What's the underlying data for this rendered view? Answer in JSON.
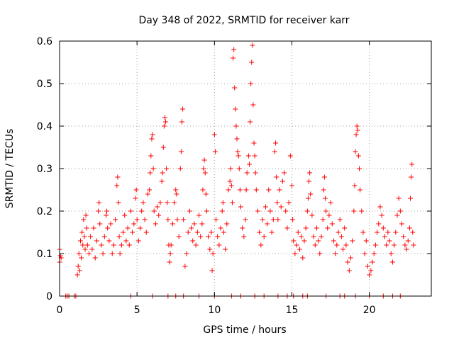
{
  "chart_data": {
    "type": "scatter",
    "title": "Day 348 of 2022, SRMTID for receiver karr",
    "xlabel": "GPS time / hours",
    "ylabel": "SRMTID / TECUs",
    "xlim": [
      0,
      24
    ],
    "ylim": [
      0,
      0.6
    ],
    "x_ticks": [
      0,
      5,
      10,
      15,
      20
    ],
    "y_ticks": [
      0,
      0.1,
      0.2,
      0.3,
      0.4,
      0.5,
      0.6
    ],
    "x_tick_labels": [
      "0",
      "5",
      "10",
      "15",
      "20"
    ],
    "y_tick_labels": [
      "0",
      "0.1",
      "0.2",
      "0.3",
      "0.4",
      "0.5",
      "0.6"
    ],
    "grid": true,
    "marker": "+",
    "colors": {
      "series": "#ff0000",
      "grid": "#a0a0a0",
      "axis": "#000000"
    },
    "series": [
      {
        "name": "SRMTID",
        "points": [
          [
            0.0,
            0.08
          ],
          [
            0.0,
            0.11
          ],
          [
            0.05,
            0.095
          ],
          [
            0.1,
            0.09
          ],
          [
            0.4,
            0.0
          ],
          [
            0.5,
            0.0
          ],
          [
            0.6,
            0.0
          ],
          [
            0.95,
            0.0
          ],
          [
            1.05,
            0.0
          ],
          [
            1.15,
            0.05
          ],
          [
            1.2,
            0.07
          ],
          [
            1.25,
            0.1
          ],
          [
            1.3,
            0.06
          ],
          [
            1.35,
            0.13
          ],
          [
            1.4,
            0.09
          ],
          [
            1.45,
            0.15
          ],
          [
            1.5,
            0.12
          ],
          [
            1.55,
            0.18
          ],
          [
            1.6,
            0.14
          ],
          [
            1.65,
            0.11
          ],
          [
            1.7,
            0.19
          ],
          [
            1.75,
            0.16
          ],
          [
            1.8,
            0.12
          ],
          [
            1.9,
            0.1
          ],
          [
            2.0,
            0.14
          ],
          [
            2.1,
            0.11
          ],
          [
            2.2,
            0.16
          ],
          [
            2.3,
            0.09
          ],
          [
            2.4,
            0.13
          ],
          [
            2.5,
            0.2
          ],
          [
            2.55,
            0.22
          ],
          [
            2.6,
            0.17
          ],
          [
            2.7,
            0.12
          ],
          [
            2.8,
            0.1
          ],
          [
            2.9,
            0.14
          ],
          [
            3.0,
            0.19
          ],
          [
            3.05,
            0.2
          ],
          [
            3.1,
            0.16
          ],
          [
            3.2,
            0.13
          ],
          [
            3.3,
            0.17
          ],
          [
            3.4,
            0.1
          ],
          [
            3.5,
            0.12
          ],
          [
            3.6,
            0.18
          ],
          [
            3.7,
            0.26
          ],
          [
            3.75,
            0.28
          ],
          [
            3.8,
            0.22
          ],
          [
            3.85,
            0.14
          ],
          [
            3.9,
            0.1
          ],
          [
            4.0,
            0.12
          ],
          [
            4.1,
            0.15
          ],
          [
            4.2,
            0.19
          ],
          [
            4.3,
            0.13
          ],
          [
            4.4,
            0.16
          ],
          [
            4.5,
            0.12
          ],
          [
            4.6,
            0.2
          ],
          [
            4.7,
            0.15
          ],
          [
            4.8,
            0.17
          ],
          [
            4.9,
            0.23
          ],
          [
            4.95,
            0.25
          ],
          [
            5.0,
            0.18
          ],
          [
            5.1,
            0.13
          ],
          [
            5.2,
            0.16
          ],
          [
            5.3,
            0.2
          ],
          [
            5.4,
            0.22
          ],
          [
            5.5,
            0.18
          ],
          [
            5.6,
            0.15
          ],
          [
            5.7,
            0.24
          ],
          [
            5.8,
            0.25
          ],
          [
            5.85,
            0.29
          ],
          [
            5.9,
            0.33
          ],
          [
            5.95,
            0.37
          ],
          [
            6.0,
            0.38
          ],
          [
            6.05,
            0.3
          ],
          [
            6.1,
            0.2
          ],
          [
            6.2,
            0.17
          ],
          [
            6.3,
            0.21
          ],
          [
            6.4,
            0.19
          ],
          [
            6.5,
            0.22
          ],
          [
            6.6,
            0.27
          ],
          [
            6.65,
            0.29
          ],
          [
            6.7,
            0.35
          ],
          [
            6.75,
            0.4
          ],
          [
            6.8,
            0.42
          ],
          [
            6.85,
            0.41
          ],
          [
            6.9,
            0.3
          ],
          [
            6.95,
            0.22
          ],
          [
            7.0,
            0.18
          ],
          [
            7.05,
            0.12
          ],
          [
            7.1,
            0.08
          ],
          [
            7.15,
            0.1
          ],
          [
            7.2,
            0.12
          ],
          [
            7.3,
            0.17
          ],
          [
            7.4,
            0.22
          ],
          [
            7.5,
            0.25
          ],
          [
            7.55,
            0.24
          ],
          [
            7.6,
            0.18
          ],
          [
            7.7,
            0.14
          ],
          [
            7.8,
            0.3
          ],
          [
            7.85,
            0.34
          ],
          [
            7.9,
            0.41
          ],
          [
            7.95,
            0.44
          ],
          [
            8.0,
            0.18
          ],
          [
            8.1,
            0.07
          ],
          [
            8.2,
            0.1
          ],
          [
            8.3,
            0.15
          ],
          [
            8.4,
            0.2
          ],
          [
            8.5,
            0.16
          ],
          [
            8.6,
            0.13
          ],
          [
            8.7,
            0.17
          ],
          [
            8.8,
            0.12
          ],
          [
            8.9,
            0.15
          ],
          [
            9.0,
            0.19
          ],
          [
            9.1,
            0.14
          ],
          [
            9.2,
            0.17
          ],
          [
            9.25,
            0.25
          ],
          [
            9.3,
            0.3
          ],
          [
            9.35,
            0.32
          ],
          [
            9.4,
            0.29
          ],
          [
            9.45,
            0.24
          ],
          [
            9.5,
            0.2
          ],
          [
            9.6,
            0.14
          ],
          [
            9.7,
            0.11
          ],
          [
            9.8,
            0.15
          ],
          [
            9.85,
            0.06
          ],
          [
            9.9,
            0.1
          ],
          [
            10.0,
            0.38
          ],
          [
            10.05,
            0.34
          ],
          [
            10.1,
            0.18
          ],
          [
            10.2,
            0.14
          ],
          [
            10.3,
            0.12
          ],
          [
            10.4,
            0.16
          ],
          [
            10.5,
            0.2
          ],
          [
            10.55,
            0.22
          ],
          [
            10.6,
            0.15
          ],
          [
            10.7,
            0.11
          ],
          [
            10.8,
            0.17
          ],
          [
            10.9,
            0.25
          ],
          [
            11.0,
            0.27
          ],
          [
            11.05,
            0.3
          ],
          [
            11.1,
            0.26
          ],
          [
            11.15,
            0.22
          ],
          [
            11.2,
            0.56
          ],
          [
            11.25,
            0.58
          ],
          [
            11.3,
            0.49
          ],
          [
            11.35,
            0.44
          ],
          [
            11.4,
            0.4
          ],
          [
            11.45,
            0.37
          ],
          [
            11.5,
            0.34
          ],
          [
            11.55,
            0.33
          ],
          [
            11.6,
            0.3
          ],
          [
            11.65,
            0.25
          ],
          [
            11.7,
            0.21
          ],
          [
            11.8,
            0.16
          ],
          [
            11.9,
            0.14
          ],
          [
            12.0,
            0.18
          ],
          [
            12.05,
            0.25
          ],
          [
            12.1,
            0.29
          ],
          [
            12.2,
            0.33
          ],
          [
            12.25,
            0.31
          ],
          [
            12.3,
            0.41
          ],
          [
            12.35,
            0.5
          ],
          [
            12.4,
            0.55
          ],
          [
            12.45,
            0.59
          ],
          [
            12.5,
            0.45
          ],
          [
            12.55,
            0.36
          ],
          [
            12.6,
            0.33
          ],
          [
            12.65,
            0.29
          ],
          [
            12.7,
            0.25
          ],
          [
            12.8,
            0.2
          ],
          [
            12.9,
            0.15
          ],
          [
            13.0,
            0.12
          ],
          [
            13.1,
            0.18
          ],
          [
            13.2,
            0.14
          ],
          [
            13.3,
            0.21
          ],
          [
            13.4,
            0.17
          ],
          [
            13.5,
            0.25
          ],
          [
            13.6,
            0.2
          ],
          [
            13.7,
            0.15
          ],
          [
            13.8,
            0.18
          ],
          [
            13.9,
            0.34
          ],
          [
            13.95,
            0.36
          ],
          [
            14.0,
            0.28
          ],
          [
            14.05,
            0.22
          ],
          [
            14.1,
            0.18
          ],
          [
            14.2,
            0.25
          ],
          [
            14.3,
            0.21
          ],
          [
            14.4,
            0.27
          ],
          [
            14.5,
            0.29
          ],
          [
            14.6,
            0.2
          ],
          [
            14.7,
            0.16
          ],
          [
            14.8,
            0.22
          ],
          [
            14.9,
            0.33
          ],
          [
            15.0,
            0.26
          ],
          [
            15.05,
            0.18
          ],
          [
            15.1,
            0.13
          ],
          [
            15.2,
            0.1
          ],
          [
            15.3,
            0.12
          ],
          [
            15.4,
            0.15
          ],
          [
            15.5,
            0.11
          ],
          [
            15.6,
            0.14
          ],
          [
            15.7,
            0.09
          ],
          [
            15.8,
            0.13
          ],
          [
            15.9,
            0.16
          ],
          [
            16.0,
            0.2
          ],
          [
            16.05,
            0.23
          ],
          [
            16.1,
            0.27
          ],
          [
            16.15,
            0.29
          ],
          [
            16.2,
            0.24
          ],
          [
            16.3,
            0.19
          ],
          [
            16.4,
            0.14
          ],
          [
            16.5,
            0.12
          ],
          [
            16.6,
            0.16
          ],
          [
            16.7,
            0.13
          ],
          [
            16.8,
            0.1
          ],
          [
            16.9,
            0.14
          ],
          [
            17.0,
            0.18
          ],
          [
            17.05,
            0.25
          ],
          [
            17.1,
            0.28
          ],
          [
            17.15,
            0.23
          ],
          [
            17.2,
            0.2
          ],
          [
            17.3,
            0.16
          ],
          [
            17.4,
            0.19
          ],
          [
            17.5,
            0.22
          ],
          [
            17.6,
            0.17
          ],
          [
            17.7,
            0.13
          ],
          [
            17.8,
            0.1
          ],
          [
            17.9,
            0.12
          ],
          [
            18.0,
            0.15
          ],
          [
            18.1,
            0.18
          ],
          [
            18.2,
            0.14
          ],
          [
            18.3,
            0.11
          ],
          [
            18.4,
            0.16
          ],
          [
            18.5,
            0.12
          ],
          [
            18.6,
            0.08
          ],
          [
            18.7,
            0.06
          ],
          [
            18.8,
            0.09
          ],
          [
            18.9,
            0.13
          ],
          [
            19.0,
            0.2
          ],
          [
            19.05,
            0.26
          ],
          [
            19.1,
            0.34
          ],
          [
            19.15,
            0.38
          ],
          [
            19.2,
            0.4
          ],
          [
            19.25,
            0.39
          ],
          [
            19.3,
            0.33
          ],
          [
            19.35,
            0.3
          ],
          [
            19.4,
            0.25
          ],
          [
            19.5,
            0.2
          ],
          [
            19.6,
            0.15
          ],
          [
            19.7,
            0.1
          ],
          [
            19.8,
            0.13
          ],
          [
            19.9,
            0.07
          ],
          [
            20.0,
            0.05
          ],
          [
            20.1,
            0.06
          ],
          [
            20.2,
            0.08
          ],
          [
            20.3,
            0.1
          ],
          [
            20.4,
            0.12
          ],
          [
            20.5,
            0.15
          ],
          [
            20.6,
            0.17
          ],
          [
            20.7,
            0.21
          ],
          [
            20.8,
            0.19
          ],
          [
            20.9,
            0.16
          ],
          [
            21.0,
            0.14
          ],
          [
            21.1,
            0.12
          ],
          [
            21.2,
            0.15
          ],
          [
            21.3,
            0.13
          ],
          [
            21.4,
            0.1
          ],
          [
            21.5,
            0.08
          ],
          [
            21.6,
            0.12
          ],
          [
            21.7,
            0.15
          ],
          [
            21.8,
            0.19
          ],
          [
            21.9,
            0.23
          ],
          [
            22.0,
            0.2
          ],
          [
            22.1,
            0.17
          ],
          [
            22.2,
            0.14
          ],
          [
            22.3,
            0.12
          ],
          [
            22.4,
            0.11
          ],
          [
            22.5,
            0.13
          ],
          [
            22.6,
            0.16
          ],
          [
            22.65,
            0.23
          ],
          [
            22.7,
            0.28
          ],
          [
            22.75,
            0.31
          ],
          [
            22.8,
            0.15
          ],
          [
            22.85,
            0.12
          ],
          [
            4.6,
            0.0
          ],
          [
            6.0,
            0.0
          ],
          [
            7.0,
            0.0
          ],
          [
            7.5,
            0.0
          ],
          [
            8.0,
            0.0
          ],
          [
            9.0,
            0.0
          ],
          [
            10.0,
            0.0
          ],
          [
            11.1,
            0.0
          ],
          [
            11.7,
            0.0
          ],
          [
            12.6,
            0.0
          ],
          [
            13.2,
            0.0
          ],
          [
            14.1,
            0.0
          ],
          [
            14.7,
            0.0
          ],
          [
            15.1,
            0.0
          ],
          [
            15.7,
            0.0
          ],
          [
            16.0,
            0.0
          ],
          [
            17.2,
            0.0
          ],
          [
            18.1,
            0.0
          ],
          [
            18.4,
            0.0
          ],
          [
            19.1,
            0.0
          ],
          [
            20.0,
            0.0
          ],
          [
            20.9,
            0.0
          ],
          [
            21.5,
            0.0
          ],
          [
            22.0,
            0.0
          ]
        ]
      }
    ]
  }
}
